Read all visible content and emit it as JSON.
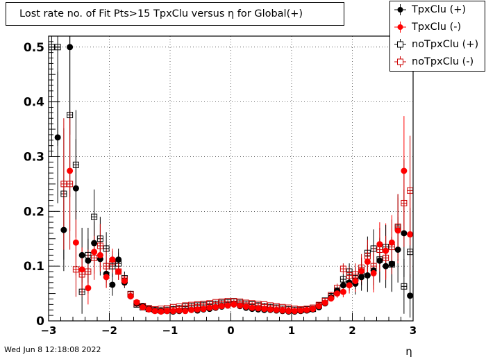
{
  "title": "Lost rate no. of Fit Pts>15 TpxClu versus η for Global(+)",
  "timestamp": "Wed Jun  8 12:18:08 2022",
  "chart_data": {
    "type": "scatter",
    "title": "Lost rate no. of Fit Pts>15 TpxClu versus η for Global(+)",
    "xlabel": "η",
    "ylabel": "",
    "xlim": [
      -3,
      3
    ],
    "ylim": [
      0,
      0.52
    ],
    "x_ticks": [
      "−3",
      "−2",
      "−1",
      "0",
      "1",
      "2",
      "3"
    ],
    "y_ticks": [
      "0",
      "0.1",
      "0.2",
      "0.3",
      "0.4",
      "0.5"
    ],
    "grid": true,
    "legend_position": "top-right",
    "series": [
      {
        "name": "TpxClu (+)",
        "marker": "filled-circle",
        "color": "#000000",
        "points": [
          [
            -2.85,
            0.335,
            0.12
          ],
          [
            -2.75,
            0.166,
            0.075
          ],
          [
            -2.65,
            0.5,
            0.16
          ],
          [
            -2.55,
            0.242,
            0.09
          ],
          [
            -2.45,
            0.12,
            0.05
          ],
          [
            -2.35,
            0.11,
            0.04
          ],
          [
            -2.25,
            0.142,
            0.04
          ],
          [
            -2.15,
            0.113,
            0.03
          ],
          [
            -2.05,
            0.086,
            0.025
          ],
          [
            -1.95,
            0.066,
            0.02
          ],
          [
            -1.85,
            0.112,
            0.02
          ],
          [
            -1.75,
            0.07,
            0.01
          ],
          [
            -1.65,
            0.045,
            0.006
          ],
          [
            -1.55,
            0.032,
            0.005
          ],
          [
            -1.45,
            0.027,
            0.004
          ],
          [
            -1.35,
            0.022,
            0.004
          ],
          [
            -1.25,
            0.019,
            0.003
          ],
          [
            -1.15,
            0.018,
            0.003
          ],
          [
            -1.05,
            0.018,
            0.003
          ],
          [
            -0.95,
            0.017,
            0.003
          ],
          [
            -0.85,
            0.018,
            0.003
          ],
          [
            -0.75,
            0.019,
            0.003
          ],
          [
            -0.65,
            0.02,
            0.003
          ],
          [
            -0.55,
            0.019,
            0.003
          ],
          [
            -0.45,
            0.021,
            0.003
          ],
          [
            -0.35,
            0.022,
            0.003
          ],
          [
            -0.25,
            0.024,
            0.003
          ],
          [
            -0.15,
            0.026,
            0.003
          ],
          [
            -0.05,
            0.028,
            0.003
          ],
          [
            0.05,
            0.03,
            0.003
          ],
          [
            0.15,
            0.027,
            0.003
          ],
          [
            0.25,
            0.024,
            0.003
          ],
          [
            0.35,
            0.022,
            0.003
          ],
          [
            0.45,
            0.021,
            0.003
          ],
          [
            0.55,
            0.02,
            0.003
          ],
          [
            0.65,
            0.02,
            0.003
          ],
          [
            0.75,
            0.019,
            0.003
          ],
          [
            0.85,
            0.018,
            0.003
          ],
          [
            0.95,
            0.017,
            0.003
          ],
          [
            1.05,
            0.017,
            0.003
          ],
          [
            1.15,
            0.018,
            0.003
          ],
          [
            1.25,
            0.019,
            0.003
          ],
          [
            1.35,
            0.021,
            0.004
          ],
          [
            1.45,
            0.025,
            0.004
          ],
          [
            1.55,
            0.032,
            0.005
          ],
          [
            1.65,
            0.043,
            0.006
          ],
          [
            1.75,
            0.055,
            0.008
          ],
          [
            1.85,
            0.065,
            0.01
          ],
          [
            1.95,
            0.07,
            0.015
          ],
          [
            2.05,
            0.068,
            0.02
          ],
          [
            2.15,
            0.08,
            0.025
          ],
          [
            2.25,
            0.083,
            0.03
          ],
          [
            2.35,
            0.092,
            0.035
          ],
          [
            2.45,
            0.11,
            0.04
          ],
          [
            2.55,
            0.1,
            0.04
          ],
          [
            2.65,
            0.104,
            0.05
          ],
          [
            2.75,
            0.13,
            0.06
          ],
          [
            2.85,
            0.16,
            0.08
          ],
          [
            2.95,
            0.046,
            0.04
          ]
        ]
      },
      {
        "name": "TpxClu (-)",
        "marker": "filled-circle",
        "color": "#ff0000",
        "points": [
          [
            -2.65,
            0.274,
            0.11
          ],
          [
            -2.55,
            0.143,
            0.06
          ],
          [
            -2.45,
            0.094,
            0.04
          ],
          [
            -2.35,
            0.06,
            0.03
          ],
          [
            -2.25,
            0.126,
            0.04
          ],
          [
            -2.15,
            0.12,
            0.03
          ],
          [
            -2.05,
            0.08,
            0.02
          ],
          [
            -1.95,
            0.112,
            0.02
          ],
          [
            -1.85,
            0.09,
            0.015
          ],
          [
            -1.75,
            0.073,
            0.01
          ],
          [
            -1.65,
            0.045,
            0.006
          ],
          [
            -1.55,
            0.034,
            0.005
          ],
          [
            -1.45,
            0.025,
            0.004
          ],
          [
            -1.35,
            0.021,
            0.004
          ],
          [
            -1.25,
            0.018,
            0.003
          ],
          [
            -1.15,
            0.017,
            0.003
          ],
          [
            -1.05,
            0.018,
            0.003
          ],
          [
            -0.95,
            0.018,
            0.003
          ],
          [
            -0.85,
            0.019,
            0.003
          ],
          [
            -0.75,
            0.018,
            0.003
          ],
          [
            -0.65,
            0.02,
            0.003
          ],
          [
            -0.55,
            0.021,
            0.003
          ],
          [
            -0.45,
            0.022,
            0.003
          ],
          [
            -0.35,
            0.024,
            0.003
          ],
          [
            -0.25,
            0.025,
            0.003
          ],
          [
            -0.15,
            0.027,
            0.003
          ],
          [
            -0.05,
            0.028,
            0.003
          ],
          [
            0.05,
            0.03,
            0.003
          ],
          [
            0.15,
            0.028,
            0.003
          ],
          [
            0.25,
            0.026,
            0.003
          ],
          [
            0.35,
            0.024,
            0.003
          ],
          [
            0.45,
            0.023,
            0.003
          ],
          [
            0.55,
            0.022,
            0.003
          ],
          [
            0.65,
            0.021,
            0.003
          ],
          [
            0.75,
            0.02,
            0.003
          ],
          [
            0.85,
            0.019,
            0.003
          ],
          [
            0.95,
            0.018,
            0.003
          ],
          [
            1.05,
            0.018,
            0.003
          ],
          [
            1.15,
            0.019,
            0.003
          ],
          [
            1.25,
            0.02,
            0.003
          ],
          [
            1.35,
            0.022,
            0.004
          ],
          [
            1.45,
            0.027,
            0.004
          ],
          [
            1.55,
            0.033,
            0.005
          ],
          [
            1.65,
            0.041,
            0.006
          ],
          [
            1.75,
            0.05,
            0.008
          ],
          [
            1.85,
            0.053,
            0.01
          ],
          [
            1.95,
            0.065,
            0.015
          ],
          [
            2.05,
            0.073,
            0.02
          ],
          [
            2.15,
            0.091,
            0.025
          ],
          [
            2.25,
            0.108,
            0.03
          ],
          [
            2.35,
            0.087,
            0.035
          ],
          [
            2.45,
            0.14,
            0.04
          ],
          [
            2.55,
            0.128,
            0.05
          ],
          [
            2.65,
            0.143,
            0.05
          ],
          [
            2.75,
            0.165,
            0.06
          ],
          [
            2.85,
            0.274,
            0.1
          ],
          [
            2.95,
            0.158,
            0.08
          ]
        ]
      },
      {
        "name": "noTpxClu (+)",
        "marker": "open-square",
        "color": "#000000",
        "points": [
          [
            -2.95,
            0.5,
            0.2
          ],
          [
            -2.85,
            0.5,
            0.18
          ],
          [
            -2.75,
            0.232,
            0.12
          ],
          [
            -2.65,
            0.376,
            0.15
          ],
          [
            -2.55,
            0.285,
            0.1
          ],
          [
            -2.45,
            0.053,
            0.04
          ],
          [
            -2.35,
            0.12,
            0.05
          ],
          [
            -2.25,
            0.19,
            0.05
          ],
          [
            -2.15,
            0.15,
            0.04
          ],
          [
            -2.05,
            0.132,
            0.03
          ],
          [
            -1.95,
            0.1,
            0.02
          ],
          [
            -1.85,
            0.105,
            0.02
          ],
          [
            -1.75,
            0.078,
            0.012
          ],
          [
            -1.65,
            0.049,
            0.006
          ],
          [
            -1.55,
            0.03,
            0.005
          ],
          [
            -1.45,
            0.025,
            0.004
          ],
          [
            -1.35,
            0.022,
            0.004
          ],
          [
            -1.25,
            0.02,
            0.003
          ],
          [
            -1.15,
            0.019,
            0.003
          ],
          [
            -1.05,
            0.02,
            0.003
          ],
          [
            -0.95,
            0.021,
            0.003
          ],
          [
            -0.85,
            0.023,
            0.003
          ],
          [
            -0.75,
            0.026,
            0.003
          ],
          [
            -0.65,
            0.027,
            0.003
          ],
          [
            -0.55,
            0.028,
            0.003
          ],
          [
            -0.45,
            0.029,
            0.003
          ],
          [
            -0.35,
            0.03,
            0.003
          ],
          [
            -0.25,
            0.031,
            0.003
          ],
          [
            -0.15,
            0.033,
            0.003
          ],
          [
            -0.05,
            0.034,
            0.003
          ],
          [
            0.05,
            0.035,
            0.003
          ],
          [
            0.15,
            0.033,
            0.003
          ],
          [
            0.25,
            0.031,
            0.003
          ],
          [
            0.35,
            0.03,
            0.003
          ],
          [
            0.45,
            0.028,
            0.003
          ],
          [
            0.55,
            0.026,
            0.003
          ],
          [
            0.65,
            0.025,
            0.003
          ],
          [
            0.75,
            0.024,
            0.003
          ],
          [
            0.85,
            0.022,
            0.003
          ],
          [
            0.95,
            0.021,
            0.003
          ],
          [
            1.05,
            0.02,
            0.003
          ],
          [
            1.15,
            0.02,
            0.003
          ],
          [
            1.25,
            0.021,
            0.003
          ],
          [
            1.35,
            0.022,
            0.004
          ],
          [
            1.45,
            0.028,
            0.004
          ],
          [
            1.55,
            0.037,
            0.005
          ],
          [
            1.65,
            0.045,
            0.006
          ],
          [
            1.75,
            0.055,
            0.008
          ],
          [
            1.85,
            0.076,
            0.01
          ],
          [
            1.95,
            0.09,
            0.015
          ],
          [
            2.05,
            0.078,
            0.02
          ],
          [
            2.15,
            0.09,
            0.025
          ],
          [
            2.25,
            0.124,
            0.03
          ],
          [
            2.35,
            0.132,
            0.035
          ],
          [
            2.45,
            0.112,
            0.04
          ],
          [
            2.55,
            0.135,
            0.04
          ],
          [
            2.65,
            0.103,
            0.05
          ],
          [
            2.75,
            0.17,
            0.06
          ],
          [
            2.85,
            0.063,
            0.05
          ],
          [
            2.95,
            0.126,
            0.08
          ]
        ]
      },
      {
        "name": "noTpxClu (-)",
        "marker": "open-square",
        "color": "#cc0000",
        "points": [
          [
            -2.75,
            0.25,
            0.12
          ],
          [
            -2.65,
            0.25,
            0.12
          ],
          [
            -2.55,
            0.094,
            0.05
          ],
          [
            -2.45,
            0.085,
            0.04
          ],
          [
            -2.35,
            0.09,
            0.04
          ],
          [
            -2.25,
            0.115,
            0.04
          ],
          [
            -2.15,
            0.137,
            0.04
          ],
          [
            -2.05,
            0.1,
            0.03
          ],
          [
            -1.95,
            0.108,
            0.02
          ],
          [
            -1.85,
            0.09,
            0.015
          ],
          [
            -1.75,
            0.075,
            0.01
          ],
          [
            -1.65,
            0.048,
            0.006
          ],
          [
            -1.55,
            0.032,
            0.005
          ],
          [
            -1.45,
            0.027,
            0.004
          ],
          [
            -1.35,
            0.023,
            0.004
          ],
          [
            -1.25,
            0.021,
            0.003
          ],
          [
            -1.15,
            0.022,
            0.003
          ],
          [
            -1.05,
            0.023,
            0.003
          ],
          [
            -0.95,
            0.025,
            0.003
          ],
          [
            -0.85,
            0.026,
            0.003
          ],
          [
            -0.75,
            0.028,
            0.003
          ],
          [
            -0.65,
            0.029,
            0.003
          ],
          [
            -0.55,
            0.03,
            0.003
          ],
          [
            -0.45,
            0.031,
            0.003
          ],
          [
            -0.35,
            0.032,
            0.003
          ],
          [
            -0.25,
            0.034,
            0.003
          ],
          [
            -0.15,
            0.035,
            0.003
          ],
          [
            -0.05,
            0.036,
            0.003
          ],
          [
            0.05,
            0.036,
            0.003
          ],
          [
            0.15,
            0.035,
            0.003
          ],
          [
            0.25,
            0.033,
            0.003
          ],
          [
            0.35,
            0.032,
            0.003
          ],
          [
            0.45,
            0.031,
            0.003
          ],
          [
            0.55,
            0.03,
            0.003
          ],
          [
            0.65,
            0.028,
            0.003
          ],
          [
            0.75,
            0.027,
            0.003
          ],
          [
            0.85,
            0.025,
            0.003
          ],
          [
            0.95,
            0.024,
            0.003
          ],
          [
            1.05,
            0.022,
            0.003
          ],
          [
            1.15,
            0.021,
            0.003
          ],
          [
            1.25,
            0.022,
            0.003
          ],
          [
            1.35,
            0.024,
            0.004
          ],
          [
            1.45,
            0.029,
            0.004
          ],
          [
            1.55,
            0.036,
            0.005
          ],
          [
            1.65,
            0.047,
            0.006
          ],
          [
            1.75,
            0.06,
            0.008
          ],
          [
            1.85,
            0.095,
            0.01
          ],
          [
            1.95,
            0.083,
            0.015
          ],
          [
            2.05,
            0.085,
            0.02
          ],
          [
            2.15,
            0.097,
            0.025
          ],
          [
            2.25,
            0.118,
            0.03
          ],
          [
            2.35,
            0.1,
            0.035
          ],
          [
            2.45,
            0.13,
            0.04
          ],
          [
            2.55,
            0.115,
            0.04
          ],
          [
            2.65,
            0.135,
            0.05
          ],
          [
            2.75,
            0.172,
            0.06
          ],
          [
            2.85,
            0.215,
            0.08
          ],
          [
            2.95,
            0.238,
            0.1
          ]
        ]
      }
    ]
  }
}
